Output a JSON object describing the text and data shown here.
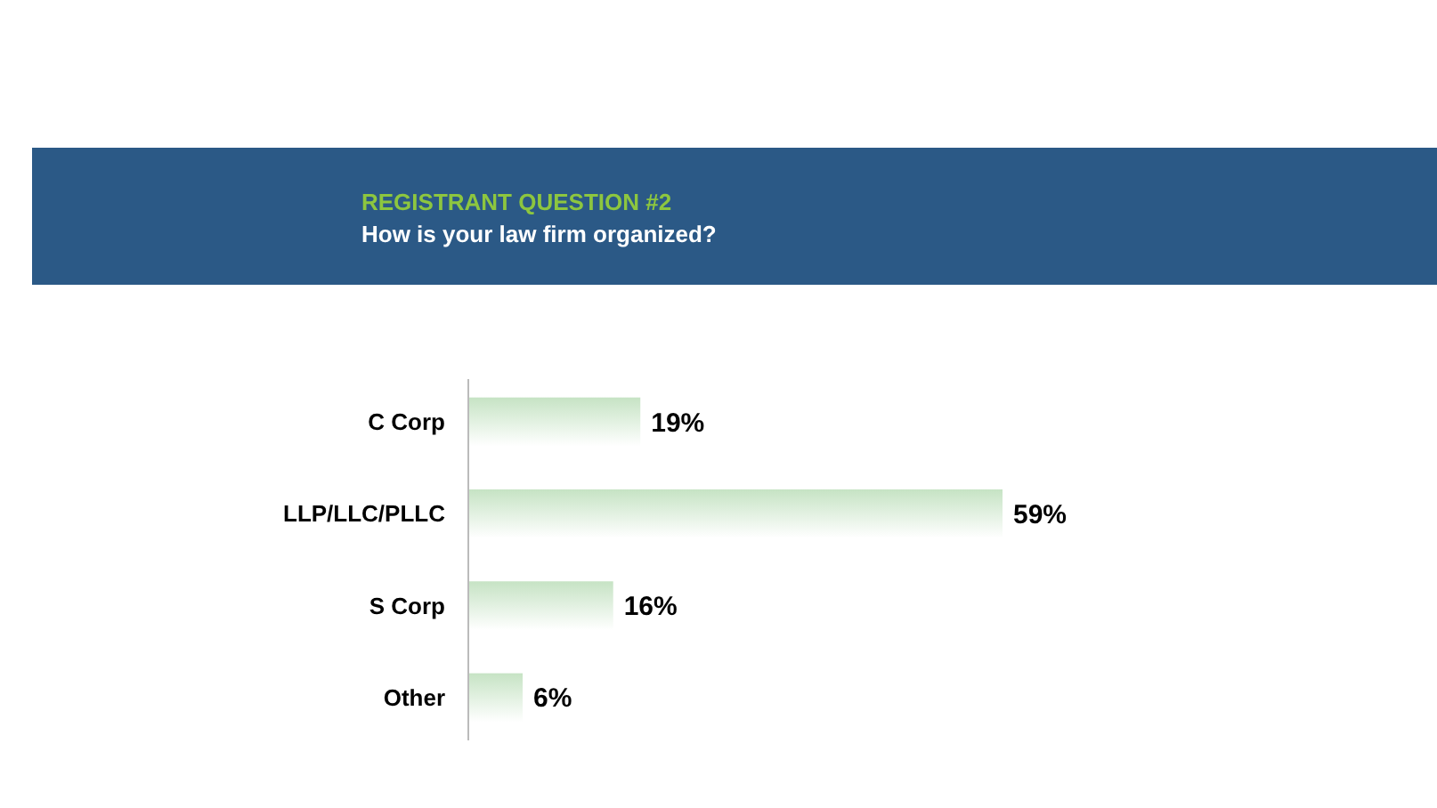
{
  "chart_data": {
    "type": "bar",
    "orientation": "horizontal",
    "title": "REGISTRANT QUESTION #2",
    "subtitle": "How is your law firm organized?",
    "categories": [
      "C Corp",
      "LLP/LLC/PLLC",
      "S Corp",
      "Other"
    ],
    "values": [
      19,
      59,
      16,
      6
    ],
    "color": "#c6e3c4",
    "data_labels": true,
    "value_labels": [
      "19%",
      "59%",
      "16%",
      "6%"
    ]
  }
}
